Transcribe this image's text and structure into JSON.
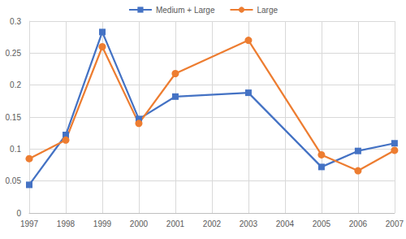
{
  "chart_data": {
    "type": "line",
    "x": [
      1997,
      1998,
      1999,
      2000,
      2001,
      2003,
      2005,
      2006,
      2007
    ],
    "series": [
      {
        "name": "Medium + Large",
        "color": "#4472c4",
        "marker": "square",
        "line_style": "solid",
        "values": [
          0.044,
          0.122,
          0.283,
          0.147,
          0.182,
          0.188,
          0.072,
          0.097,
          0.109
        ]
      },
      {
        "name": "Large",
        "color": "#ed7d31",
        "marker": "circle",
        "line_style": "solid",
        "values": [
          0.085,
          0.114,
          0.26,
          0.14,
          0.218,
          0.27,
          0.091,
          0.066,
          0.098
        ]
      }
    ],
    "xlim": [
      1997,
      2007
    ],
    "xticks": [
      1997,
      1998,
      1999,
      2000,
      2001,
      2002,
      2003,
      2004,
      2005,
      2006,
      2007
    ],
    "ylim": [
      0,
      0.3
    ],
    "yticks": [
      0,
      0.05,
      0.1,
      0.15,
      0.2,
      0.25,
      0.3
    ],
    "grid": true,
    "legend": "top"
  }
}
